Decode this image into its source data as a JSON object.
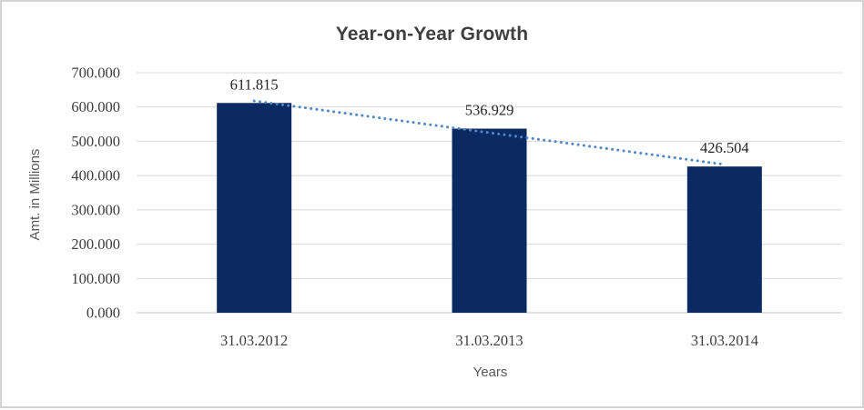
{
  "chart_data": {
    "type": "bar",
    "title": "Year-on-Year Growth",
    "xlabel": "Years",
    "ylabel": "Amt. in Millions",
    "categories": [
      "31.03.2012",
      "31.03.2013",
      "31.03.2014"
    ],
    "values": [
      611.815,
      536.929,
      426.504
    ],
    "value_labels": [
      "611.815",
      "536.929",
      "426.504"
    ],
    "ylim": [
      0,
      700
    ],
    "ytick_step": 100,
    "ytick_labels": [
      "0.000",
      "100.000",
      "200.000",
      "300.000",
      "400.000",
      "500.000",
      "600.000",
      "700.000"
    ],
    "grid": true,
    "legend": "none",
    "trendline": {
      "type": "linear",
      "style": "dotted"
    },
    "colors": {
      "bar": "#0b2a63",
      "trendline": "#4e86c6",
      "gridline": "#d9d9d9",
      "axis_line": "#c6c6c6",
      "title_text": "#3f3f3f",
      "tick_text": "#3d3d3d",
      "data_label_text": "#262626",
      "axis_title_text": "#595959",
      "border": "#d3d3d3",
      "background": "#ffffff"
    }
  }
}
